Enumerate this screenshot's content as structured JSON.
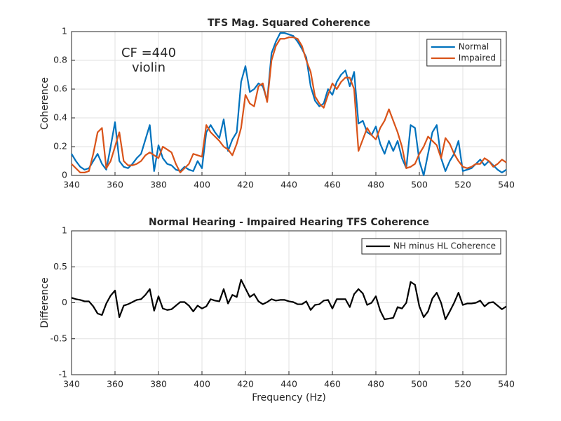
{
  "chart_data": [
    {
      "type": "line",
      "title": "TFS Mag. Squared Coherence",
      "ylabel": "Coherence",
      "annotations": [
        "CF =440",
        "violin"
      ],
      "xlim": [
        340,
        540
      ],
      "ylim": [
        0,
        1
      ],
      "xticks": [
        340,
        360,
        380,
        400,
        420,
        440,
        460,
        480,
        500,
        520,
        540
      ],
      "yticks": [
        0,
        0.2,
        0.4,
        0.6,
        0.8,
        1
      ],
      "grid": true,
      "legend": "upper right",
      "x": [
        340,
        342,
        344,
        346,
        348,
        350,
        352,
        354,
        356,
        358,
        360,
        362,
        364,
        366,
        368,
        370,
        372,
        374,
        376,
        378,
        380,
        382,
        384,
        386,
        388,
        390,
        392,
        394,
        396,
        398,
        400,
        402,
        404,
        406,
        408,
        410,
        412,
        414,
        416,
        418,
        420,
        422,
        424,
        426,
        428,
        430,
        432,
        434,
        436,
        438,
        440,
        442,
        444,
        446,
        448,
        450,
        452,
        454,
        456,
        458,
        460,
        462,
        464,
        466,
        468,
        470,
        472,
        474,
        476,
        478,
        480,
        482,
        484,
        486,
        488,
        490,
        492,
        494,
        496,
        498,
        500,
        502,
        504,
        506,
        508,
        510,
        512,
        514,
        516,
        518,
        520,
        522,
        524,
        526,
        528,
        530,
        532,
        534,
        536,
        538,
        540
      ],
      "series": [
        {
          "name": "Normal",
          "color": "#0072bd",
          "values": [
            0.15,
            0.1,
            0.06,
            0.04,
            0.05,
            0.1,
            0.15,
            0.08,
            0.04,
            0.2,
            0.37,
            0.1,
            0.06,
            0.05,
            0.08,
            0.12,
            0.15,
            0.25,
            0.35,
            0.03,
            0.21,
            0.12,
            0.08,
            0.07,
            0.04,
            0.03,
            0.06,
            0.04,
            0.03,
            0.1,
            0.05,
            0.3,
            0.35,
            0.3,
            0.26,
            0.39,
            0.17,
            0.25,
            0.3,
            0.65,
            0.76,
            0.58,
            0.6,
            0.64,
            0.62,
            0.52,
            0.85,
            0.93,
            0.99,
            0.99,
            0.98,
            0.97,
            0.93,
            0.88,
            0.82,
            0.62,
            0.52,
            0.48,
            0.5,
            0.6,
            0.56,
            0.65,
            0.7,
            0.73,
            0.62,
            0.72,
            0.36,
            0.38,
            0.3,
            0.28,
            0.34,
            0.22,
            0.15,
            0.24,
            0.17,
            0.24,
            0.12,
            0.05,
            0.35,
            0.33,
            0.1,
            0.0,
            0.15,
            0.3,
            0.35,
            0.12,
            0.03,
            0.1,
            0.15,
            0.24,
            0.03,
            0.04,
            0.05,
            0.08,
            0.11,
            0.07,
            0.1,
            0.07,
            0.04,
            0.02,
            0.04
          ]
        },
        {
          "name": "Impaired",
          "color": "#d95319",
          "values": [
            0.08,
            0.05,
            0.02,
            0.02,
            0.03,
            0.15,
            0.3,
            0.33,
            0.05,
            0.1,
            0.2,
            0.3,
            0.1,
            0.07,
            0.07,
            0.08,
            0.1,
            0.14,
            0.16,
            0.14,
            0.12,
            0.2,
            0.18,
            0.16,
            0.08,
            0.02,
            0.05,
            0.08,
            0.15,
            0.14,
            0.13,
            0.35,
            0.3,
            0.27,
            0.24,
            0.2,
            0.18,
            0.14,
            0.22,
            0.33,
            0.56,
            0.5,
            0.48,
            0.62,
            0.64,
            0.51,
            0.8,
            0.9,
            0.95,
            0.95,
            0.96,
            0.96,
            0.95,
            0.9,
            0.8,
            0.72,
            0.55,
            0.5,
            0.47,
            0.56,
            0.64,
            0.6,
            0.65,
            0.68,
            0.68,
            0.6,
            0.17,
            0.25,
            0.33,
            0.28,
            0.25,
            0.33,
            0.38,
            0.46,
            0.38,
            0.3,
            0.2,
            0.05,
            0.06,
            0.08,
            0.15,
            0.2,
            0.27,
            0.24,
            0.21,
            0.12,
            0.26,
            0.22,
            0.15,
            0.1,
            0.06,
            0.05,
            0.06,
            0.08,
            0.08,
            0.12,
            0.1,
            0.06,
            0.08,
            0.11,
            0.09
          ]
        }
      ]
    },
    {
      "type": "line",
      "title": "Normal Hearing - Impaired Hearing TFS Coherence",
      "ylabel": "Difference",
      "xlabel": "Frequency (Hz)",
      "xlim": [
        340,
        540
      ],
      "ylim": [
        -1,
        1
      ],
      "xticks": [
        340,
        360,
        380,
        400,
        420,
        440,
        460,
        480,
        500,
        520,
        540
      ],
      "yticks": [
        -1,
        -0.5,
        0,
        0.5,
        1
      ],
      "grid": true,
      "legend": "upper right",
      "x": [
        340,
        342,
        344,
        346,
        348,
        350,
        352,
        354,
        356,
        358,
        360,
        362,
        364,
        366,
        368,
        370,
        372,
        374,
        376,
        378,
        380,
        382,
        384,
        386,
        388,
        390,
        392,
        394,
        396,
        398,
        400,
        402,
        404,
        406,
        408,
        410,
        412,
        414,
        416,
        418,
        420,
        422,
        424,
        426,
        428,
        430,
        432,
        434,
        436,
        438,
        440,
        442,
        444,
        446,
        448,
        450,
        452,
        454,
        456,
        458,
        460,
        462,
        464,
        466,
        468,
        470,
        472,
        474,
        476,
        478,
        480,
        482,
        484,
        486,
        488,
        490,
        492,
        494,
        496,
        498,
        500,
        502,
        504,
        506,
        508,
        510,
        512,
        514,
        516,
        518,
        520,
        522,
        524,
        526,
        528,
        530,
        532,
        534,
        536,
        538,
        540
      ],
      "series": [
        {
          "name": "NH minus HL Coherence",
          "color": "#000000",
          "values": [
            0.07,
            0.05,
            0.04,
            0.02,
            0.02,
            -0.05,
            -0.15,
            -0.17,
            -0.01,
            0.1,
            0.17,
            -0.2,
            -0.04,
            -0.02,
            0.01,
            0.04,
            0.05,
            0.11,
            0.19,
            -0.11,
            0.09,
            -0.08,
            -0.1,
            -0.09,
            -0.04,
            0.01,
            0.01,
            -0.04,
            -0.12,
            -0.04,
            -0.08,
            -0.05,
            0.05,
            0.03,
            0.02,
            0.19,
            -0.01,
            0.11,
            0.08,
            0.32,
            0.2,
            0.08,
            0.12,
            0.02,
            -0.02,
            0.01,
            0.05,
            0.03,
            0.04,
            0.04,
            0.02,
            0.01,
            -0.02,
            -0.02,
            0.02,
            -0.1,
            -0.03,
            -0.02,
            0.03,
            0.04,
            -0.08,
            0.05,
            0.05,
            0.05,
            -0.06,
            0.12,
            0.19,
            0.13,
            -0.03,
            0.0,
            0.09,
            -0.11,
            -0.23,
            -0.22,
            -0.21,
            -0.06,
            -0.08,
            0.0,
            0.29,
            0.25,
            -0.05,
            -0.2,
            -0.12,
            0.06,
            0.14,
            0.0,
            -0.23,
            -0.12,
            0.0,
            0.14,
            -0.03,
            -0.01,
            -0.01,
            0.0,
            0.03,
            -0.05,
            0.0,
            0.01,
            -0.04,
            -0.09,
            -0.05
          ]
        }
      ]
    }
  ]
}
